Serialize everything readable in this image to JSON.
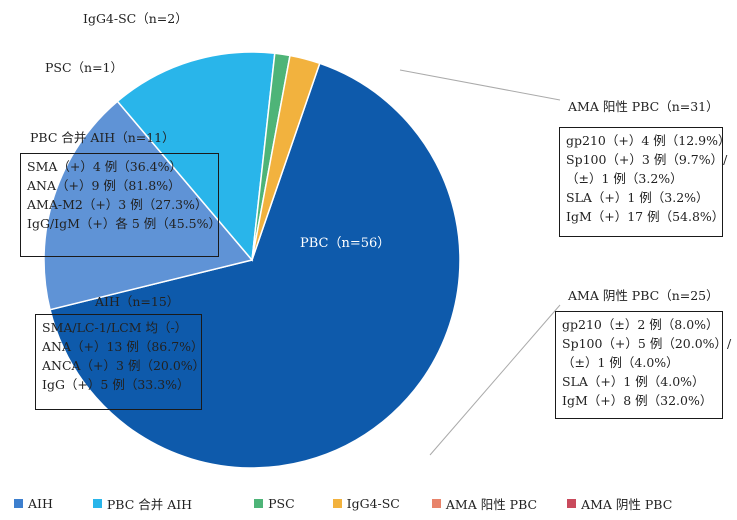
{
  "chart_data": {
    "type": "pie",
    "slices": [
      {
        "name": "PBC",
        "label": "PBC（n=56）",
        "value": 56,
        "color": "#0e5aab"
      },
      {
        "name": "AIH",
        "label": "AIH（n=15）",
        "value": 15,
        "color": "#5f93d6"
      },
      {
        "name": "PBC 合并 AIH",
        "label": "PBC 合并 AIH（n=11）",
        "value": 11,
        "color": "#29b5ea"
      },
      {
        "name": "PSC",
        "label": "PSC（n=1）",
        "value": 1,
        "color": "#4eb478"
      },
      {
        "name": "IgG4-SC",
        "label": "IgG4-SC（n=2）",
        "value": 2,
        "color": "#f2b23e"
      }
    ],
    "annotations": {
      "pbc_overlap_box": [
        "SMA（+）4 例（36.4%）",
        "ANA（+）9 例（81.8%）",
        "AMA-M2（+）3 例（27.3%）",
        "IgG/IgM（+）各 5 例（45.5%）"
      ],
      "aih_box": [
        "SMA/LC-1/LCM 均（-）",
        "ANA（+）13 例（86.7%）",
        "ANCA（+）3 例（20.0%）",
        "IgG（+）5 例（33.3%）"
      ],
      "ama_pos_title": "AMA 阳性 PBC（n=31）",
      "ama_pos_box": [
        "gp210（+）4 例（12.9%）",
        "Sp100（+）3 例（9.7%）/",
        "（±）1 例（3.2%）",
        "SLA（+）1 例（3.2%）",
        "IgM（+）17 例（54.8%）"
      ],
      "ama_neg_title": "AMA 阴性 PBC（n=25）",
      "ama_neg_box": [
        "gp210（±）2 例（8.0%）",
        "Sp100（+）5 例（20.0%）/",
        "（±）1 例（4.0%）",
        "SLA（+）1 例（4.0%）",
        "IgM（+）8 例（32.0%）"
      ]
    },
    "legend": [
      {
        "name": "AIH",
        "color": "#3d7fce"
      },
      {
        "name": "PBC 合并 AIH",
        "color": "#29b5ea"
      },
      {
        "name": "PSC",
        "color": "#4eb478"
      },
      {
        "name": "IgG4-SC",
        "color": "#f2b23e"
      },
      {
        "name": "AMA 阳性 PBC",
        "color": "#e8836a"
      },
      {
        "name": "AMA 阴性 PBC",
        "color": "#c94a5c"
      }
    ],
    "legend_position": "bottom"
  }
}
